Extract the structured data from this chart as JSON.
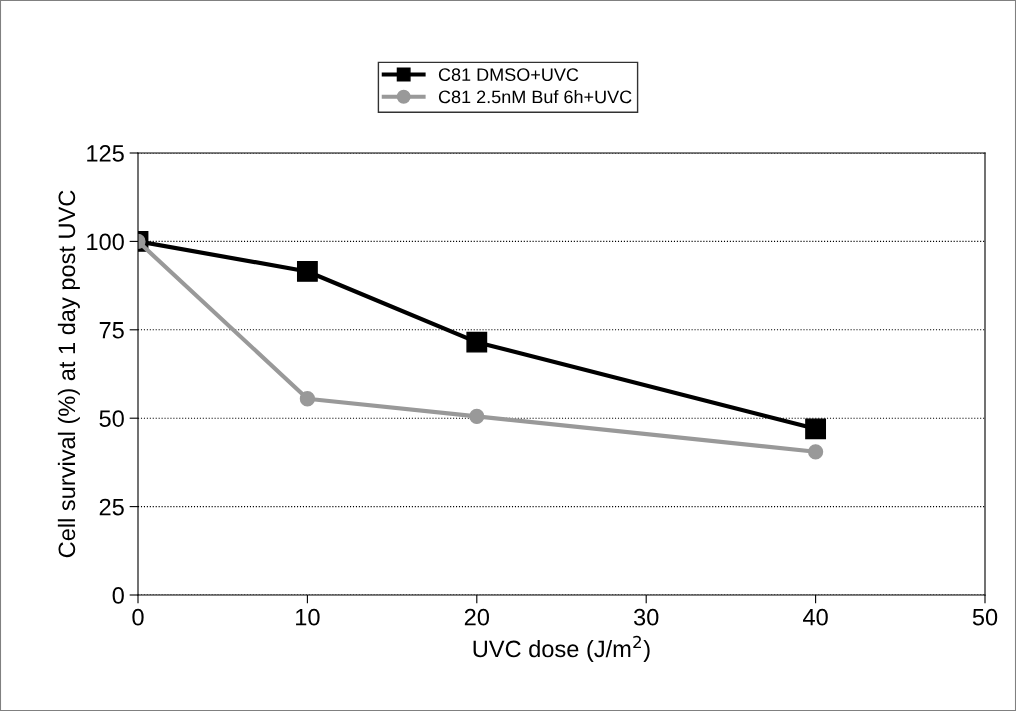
{
  "chart_data": {
    "type": "line",
    "xlabel": "UVC dose (J/m$^{2}$)",
    "ylabel": "Cell survival (%) at 1 day post UVC",
    "x": [
      0,
      10,
      20,
      40
    ],
    "series": [
      {
        "name": "C81 DMSO+UVC",
        "color": "#000000",
        "marker": "square",
        "values": [
          100,
          91.5,
          71.5,
          47
        ]
      },
      {
        "name": "C81 2.5nM Buf 6h+UVC",
        "color": "#999999",
        "marker": "circle",
        "values": [
          100,
          55.5,
          50.5,
          40.5
        ]
      }
    ],
    "xlim": [
      0,
      50
    ],
    "xticks": [
      0,
      10,
      20,
      30,
      40,
      50
    ],
    "ylim": [
      0,
      125
    ],
    "yticks": [
      0,
      25,
      50,
      75,
      100,
      125
    ],
    "grid": "y",
    "legend": "top",
    "line_style": "solid"
  }
}
